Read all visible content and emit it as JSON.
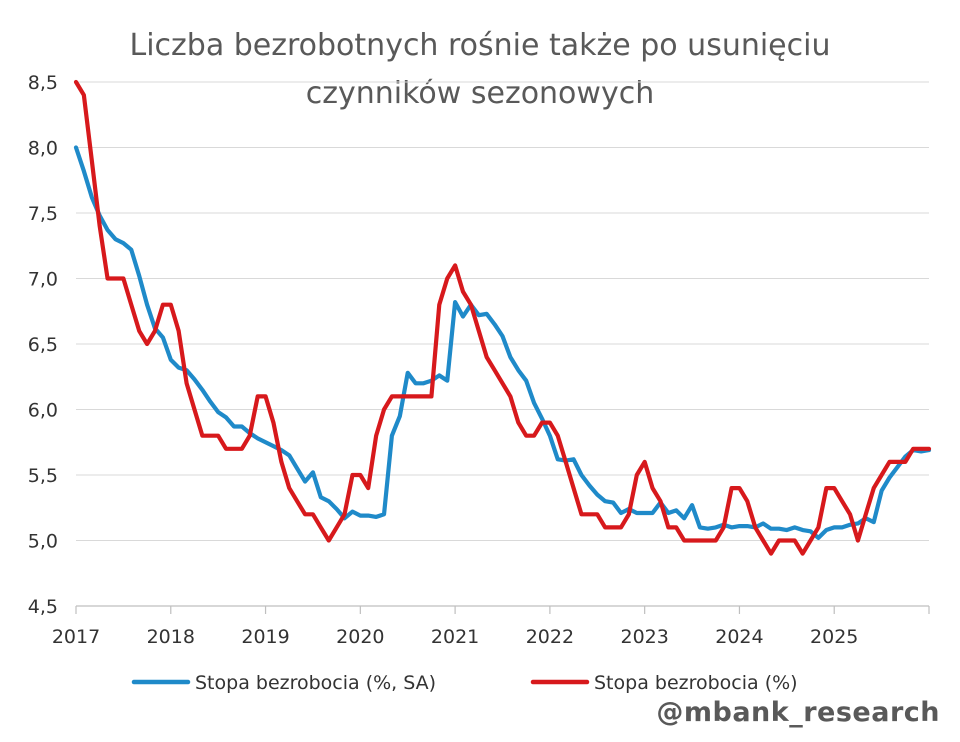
{
  "chart_data": {
    "type": "line",
    "title": "Liczba bezrobotnych rośnie także po usunięciu czynników sezonowych",
    "xlabel": "",
    "ylabel": "",
    "ylim": [
      4.5,
      8.5
    ],
    "yticks": [
      4.5,
      5.0,
      5.5,
      6.0,
      6.5,
      7.0,
      7.5,
      8.0,
      8.5
    ],
    "ytick_labels": [
      "4,5",
      "5,0",
      "5,5",
      "6,0",
      "6,5",
      "7,0",
      "7,5",
      "8,0",
      "8,5"
    ],
    "xlim": [
      2017,
      2026
    ],
    "xticks": [
      2017,
      2018,
      2019,
      2020,
      2021,
      2022,
      2023,
      2024,
      2025
    ],
    "xtick_labels": [
      "2017",
      "2018",
      "2019",
      "2020",
      "2021",
      "2022",
      "2023",
      "2024",
      "2025"
    ],
    "grid": "horizontal",
    "legend_position": "bottom",
    "series": [
      {
        "name": "Stopa bezrobocia (%, SA)",
        "color": "#1f8ac9",
        "x": [
          2017.0,
          2017.083,
          2017.167,
          2017.25,
          2017.333,
          2017.417,
          2017.5,
          2017.583,
          2017.667,
          2017.75,
          2017.833,
          2017.917,
          2018.0,
          2018.083,
          2018.167,
          2018.25,
          2018.333,
          2018.417,
          2018.5,
          2018.583,
          2018.667,
          2018.75,
          2018.833,
          2018.917,
          2019.0,
          2019.083,
          2019.167,
          2019.25,
          2019.333,
          2019.417,
          2019.5,
          2019.583,
          2019.667,
          2019.75,
          2019.833,
          2019.917,
          2020.0,
          2020.083,
          2020.167,
          2020.25,
          2020.333,
          2020.417,
          2020.5,
          2020.583,
          2020.667,
          2020.75,
          2020.833,
          2020.917,
          2021.0,
          2021.083,
          2021.167,
          2021.25,
          2021.333,
          2021.417,
          2021.5,
          2021.583,
          2021.667,
          2021.75,
          2021.833,
          2021.917,
          2022.0,
          2022.083,
          2022.167,
          2022.25,
          2022.333,
          2022.417,
          2022.5,
          2022.583,
          2022.667,
          2022.75,
          2022.833,
          2022.917,
          2023.0,
          2023.083,
          2023.167,
          2023.25,
          2023.333,
          2023.417,
          2023.5,
          2023.583,
          2023.667,
          2023.75,
          2023.833,
          2023.917,
          2024.0,
          2024.083,
          2024.167,
          2024.25,
          2024.333,
          2024.417,
          2024.5,
          2024.583,
          2024.667,
          2024.75,
          2024.833,
          2024.917,
          2025.0,
          2025.083,
          2025.167,
          2025.25,
          2025.333,
          2025.417,
          2025.5,
          2025.583,
          2025.667,
          2025.75,
          2025.833,
          2025.917,
          2026.0
        ],
        "y": [
          8.0,
          7.82,
          7.62,
          7.48,
          7.37,
          7.3,
          7.27,
          7.22,
          7.02,
          6.8,
          6.62,
          6.55,
          6.38,
          6.32,
          6.3,
          6.23,
          6.15,
          6.06,
          5.98,
          5.94,
          5.87,
          5.87,
          5.82,
          5.78,
          5.75,
          5.72,
          5.69,
          5.65,
          5.55,
          5.45,
          5.52,
          5.33,
          5.3,
          5.24,
          5.17,
          5.22,
          5.19,
          5.19,
          5.18,
          5.2,
          5.8,
          5.95,
          6.28,
          6.2,
          6.2,
          6.22,
          6.26,
          6.22,
          6.82,
          6.71,
          6.8,
          6.72,
          6.73,
          6.65,
          6.56,
          6.4,
          6.3,
          6.22,
          6.05,
          5.93,
          5.8,
          5.62,
          5.61,
          5.62,
          5.5,
          5.42,
          5.35,
          5.3,
          5.29,
          5.21,
          5.24,
          5.21,
          5.21,
          5.21,
          5.29,
          5.21,
          5.23,
          5.17,
          5.27,
          5.1,
          5.09,
          5.1,
          5.12,
          5.1,
          5.11,
          5.11,
          5.1,
          5.13,
          5.09,
          5.09,
          5.08,
          5.1,
          5.08,
          5.07,
          5.02,
          5.08,
          5.1,
          5.1,
          5.12,
          5.13,
          5.17,
          5.14,
          5.38,
          5.48,
          5.56,
          5.64,
          5.69,
          5.68,
          5.69
        ]
      },
      {
        "name": "Stopa bezrobocia (%)",
        "color": "#d7191c",
        "x": [
          2017.0,
          2017.083,
          2017.167,
          2017.25,
          2017.333,
          2017.417,
          2017.5,
          2017.583,
          2017.667,
          2017.75,
          2017.833,
          2017.917,
          2018.0,
          2018.083,
          2018.167,
          2018.25,
          2018.333,
          2018.417,
          2018.5,
          2018.583,
          2018.667,
          2018.75,
          2018.833,
          2018.917,
          2019.0,
          2019.083,
          2019.167,
          2019.25,
          2019.333,
          2019.417,
          2019.5,
          2019.583,
          2019.667,
          2019.75,
          2019.833,
          2019.917,
          2020.0,
          2020.083,
          2020.167,
          2020.25,
          2020.333,
          2020.417,
          2020.5,
          2020.583,
          2020.667,
          2020.75,
          2020.833,
          2020.917,
          2021.0,
          2021.083,
          2021.167,
          2021.25,
          2021.333,
          2021.417,
          2021.5,
          2021.583,
          2021.667,
          2021.75,
          2021.833,
          2021.917,
          2022.0,
          2022.083,
          2022.167,
          2022.25,
          2022.333,
          2022.417,
          2022.5,
          2022.583,
          2022.667,
          2022.75,
          2022.833,
          2022.917,
          2023.0,
          2023.083,
          2023.167,
          2023.25,
          2023.333,
          2023.417,
          2023.5,
          2023.583,
          2023.667,
          2023.75,
          2023.833,
          2023.917,
          2024.0,
          2024.083,
          2024.167,
          2024.25,
          2024.333,
          2024.417,
          2024.5,
          2024.583,
          2024.667,
          2024.75,
          2024.833,
          2024.917,
          2025.0,
          2025.083,
          2025.167,
          2025.25,
          2025.333,
          2025.417,
          2025.5,
          2025.583,
          2025.667,
          2025.75,
          2025.833,
          2025.917,
          2026.0
        ],
        "y": [
          8.5,
          8.4,
          7.9,
          7.4,
          7.0,
          7.0,
          7.0,
          6.8,
          6.6,
          6.5,
          6.6,
          6.8,
          6.8,
          6.6,
          6.2,
          6.0,
          5.8,
          5.8,
          5.8,
          5.7,
          5.7,
          5.7,
          5.8,
          6.1,
          6.1,
          5.9,
          5.6,
          5.4,
          5.3,
          5.2,
          5.2,
          5.1,
          5.0,
          5.1,
          5.2,
          5.5,
          5.5,
          5.4,
          5.8,
          6.0,
          6.1,
          6.1,
          6.1,
          6.1,
          6.1,
          6.1,
          6.8,
          7.0,
          7.1,
          6.9,
          6.8,
          6.6,
          6.4,
          6.3,
          6.2,
          6.1,
          5.9,
          5.8,
          5.8,
          5.9,
          5.9,
          5.8,
          5.6,
          5.4,
          5.2,
          5.2,
          5.2,
          5.1,
          5.1,
          5.1,
          5.2,
          5.5,
          5.6,
          5.4,
          5.3,
          5.1,
          5.1,
          5.0,
          5.0,
          5.0,
          5.0,
          5.0,
          5.1,
          5.4,
          5.4,
          5.3,
          5.1,
          5.0,
          4.9,
          5.0,
          5.0,
          5.0,
          4.9,
          5.0,
          5.1,
          5.4,
          5.4,
          5.3,
          5.2,
          5.0,
          5.2,
          5.4,
          5.5,
          5.6,
          5.6,
          5.6,
          5.7,
          5.7,
          5.7
        ]
      }
    ]
  },
  "watermark": "@mbank_research"
}
